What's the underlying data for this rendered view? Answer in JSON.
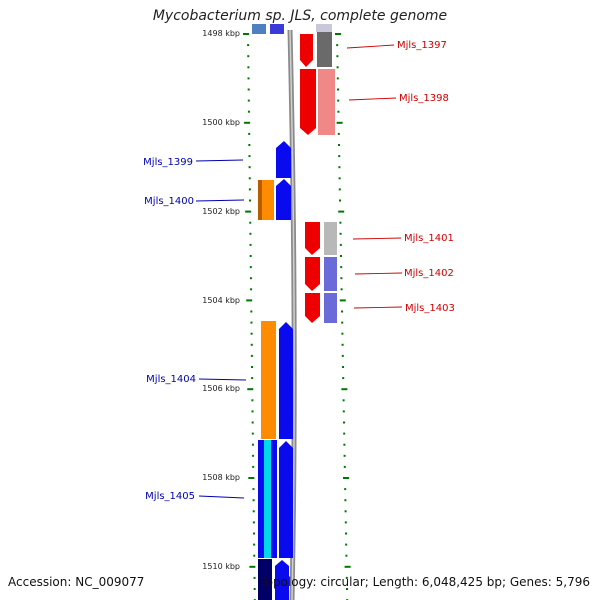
{
  "title": "Mycobacterium sp. JLS, complete genome",
  "footer": {
    "accession": "Accession: NC_009077",
    "summary": "Topology: circular; Length: 6,048,425 bp; Genes: 5,796"
  },
  "colors": {
    "forward_label": "#0000b0",
    "reverse_label": "#cc0000",
    "tick": "#007700",
    "backbone": "#888888"
  },
  "kbp_labels": [
    "1498 kbp",
    "1500 kbp",
    "1502 kbp",
    "1504 kbp",
    "1506 kbp",
    "1508 kbp",
    "1510 kbp"
  ],
  "gene_labels": {
    "left": [
      "Mjls_1399",
      "Mjls_1400",
      "Mjls_1404",
      "Mjls_1405"
    ],
    "right": [
      "Mjls_1397",
      "Mjls_1398",
      "Mjls_1401",
      "Mjls_1402",
      "Mjls_1403"
    ]
  }
}
